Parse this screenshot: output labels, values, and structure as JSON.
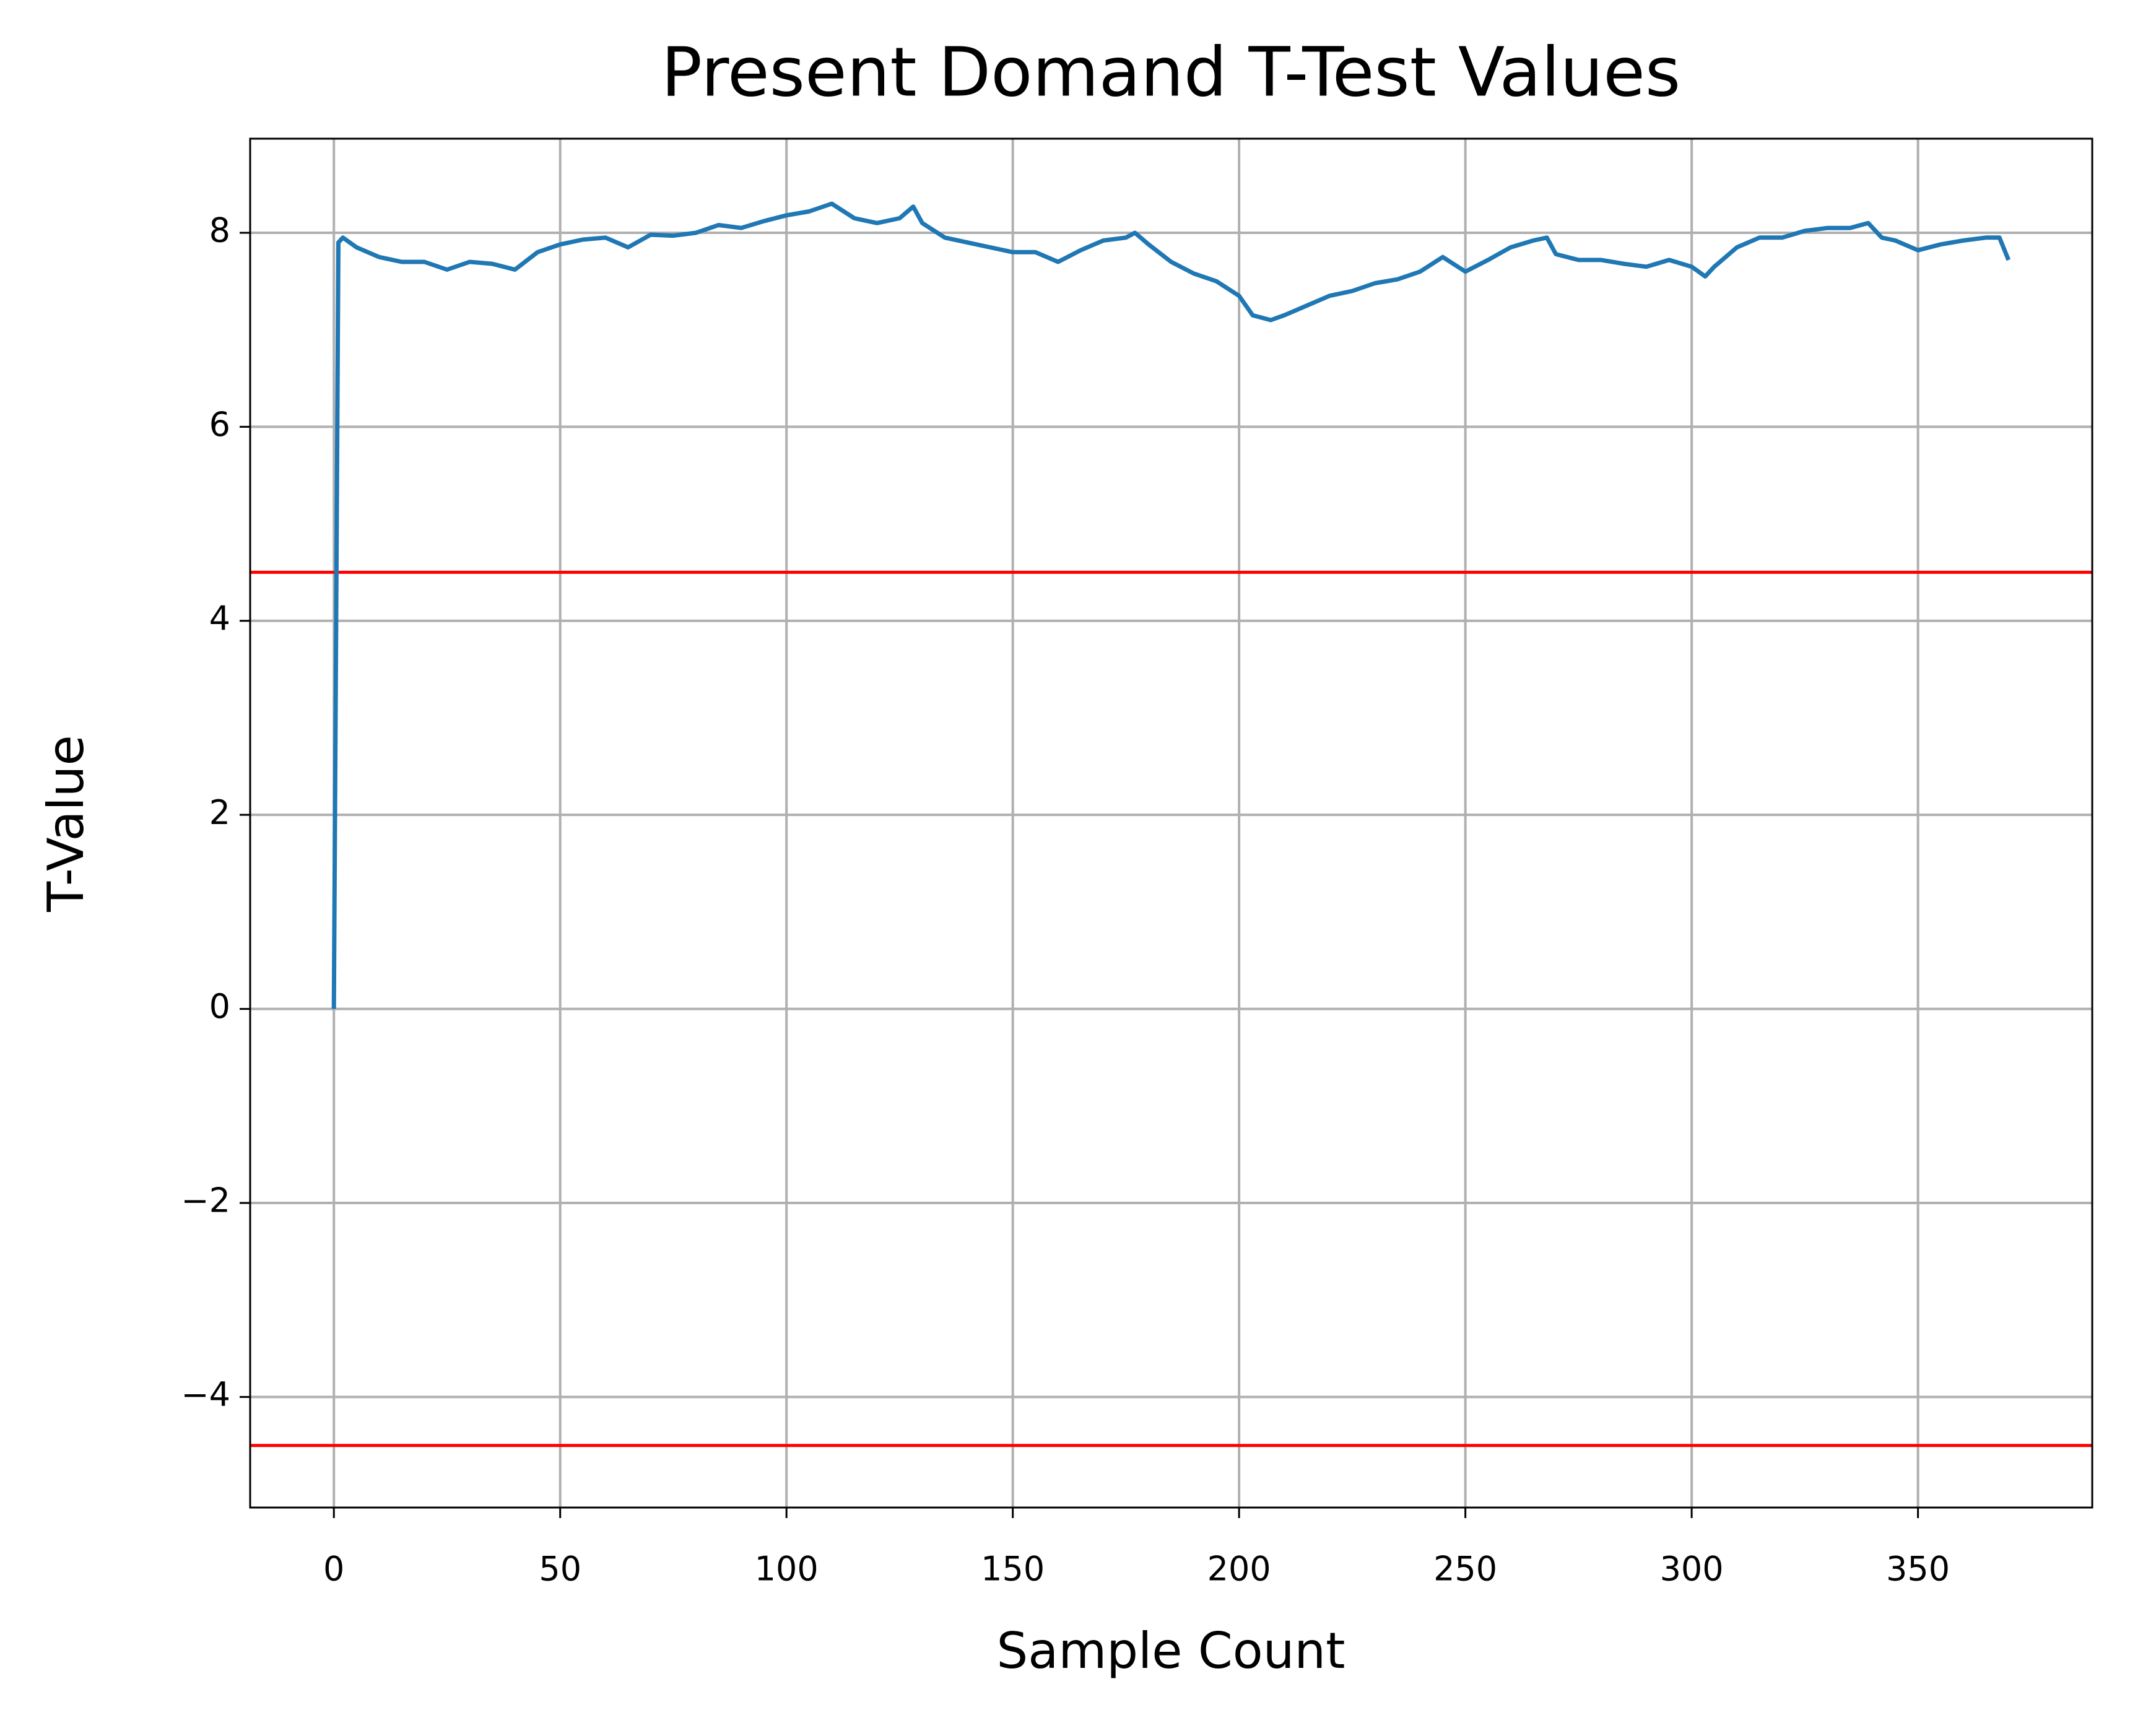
{
  "chart_data": {
    "type": "line",
    "title": "Present Domand T-Test Values",
    "xlabel": "Sample Count",
    "ylabel": "T-Value",
    "x": [
      0,
      1,
      2,
      5,
      10,
      15,
      20,
      25,
      30,
      35,
      40,
      45,
      50,
      55,
      60,
      65,
      70,
      75,
      80,
      85,
      90,
      95,
      100,
      105,
      110,
      115,
      120,
      125,
      128,
      130,
      135,
      140,
      145,
      150,
      155,
      160,
      165,
      170,
      175,
      177,
      180,
      185,
      190,
      195,
      200,
      203,
      207,
      210,
      215,
      220,
      225,
      230,
      235,
      240,
      245,
      250,
      255,
      260,
      265,
      268,
      270,
      275,
      280,
      285,
      290,
      295,
      300,
      303,
      305,
      310,
      315,
      320,
      325,
      330,
      335,
      339,
      342,
      345,
      350,
      355,
      360,
      365,
      368,
      370
    ],
    "series": [
      {
        "name": "T-Value",
        "color": "#1f77b4",
        "values": [
          0,
          7.9,
          7.95,
          7.85,
          7.75,
          7.7,
          7.7,
          7.62,
          7.7,
          7.68,
          7.62,
          7.8,
          7.88,
          7.93,
          7.95,
          7.85,
          7.98,
          7.97,
          8.0,
          8.08,
          8.05,
          8.12,
          8.18,
          8.22,
          8.3,
          8.15,
          8.1,
          8.15,
          8.27,
          8.1,
          7.95,
          7.9,
          7.85,
          7.8,
          7.8,
          7.7,
          7.82,
          7.92,
          7.95,
          8.0,
          7.88,
          7.7,
          7.58,
          7.5,
          7.35,
          7.15,
          7.1,
          7.15,
          7.25,
          7.35,
          7.4,
          7.48,
          7.52,
          7.6,
          7.75,
          7.6,
          7.72,
          7.85,
          7.92,
          7.95,
          7.78,
          7.72,
          7.72,
          7.68,
          7.65,
          7.72,
          7.65,
          7.55,
          7.65,
          7.85,
          7.95,
          7.95,
          8.02,
          8.05,
          8.05,
          8.1,
          7.95,
          7.92,
          7.82,
          7.88,
          7.92,
          7.95,
          7.95,
          7.72
        ]
      }
    ],
    "hlines": [
      {
        "value": 4.5,
        "color": "#ff0000"
      },
      {
        "value": -4.5,
        "color": "#ff0000"
      }
    ],
    "xlim": [
      -18.5,
      388.5
    ],
    "ylim": [
      -5.14,
      8.97
    ],
    "xticks": [
      0,
      50,
      100,
      150,
      200,
      250,
      300,
      350
    ],
    "yticks": [
      {
        "value": -4,
        "label": "−4"
      },
      {
        "value": -2,
        "label": "−2"
      },
      0,
      2,
      4,
      6,
      8
    ],
    "grid": true
  }
}
